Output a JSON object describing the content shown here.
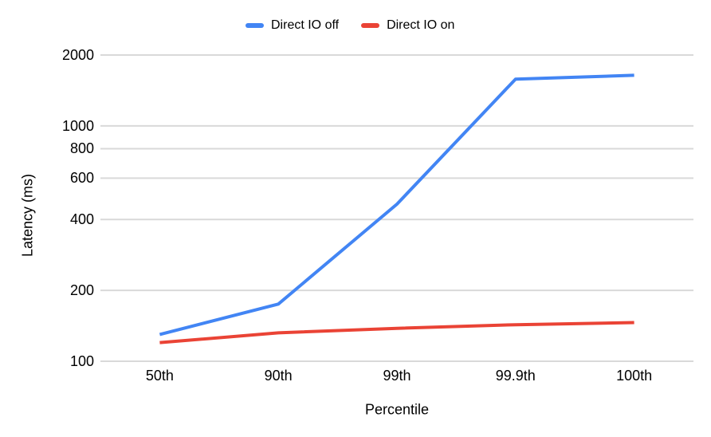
{
  "chart_data": {
    "type": "line",
    "title": "",
    "categories": [
      "50th",
      "90th",
      "99th",
      "99.9th",
      "100th"
    ],
    "series": [
      {
        "name": "Direct IO off",
        "color": "#4285F4",
        "values": [
          130,
          175,
          465,
          1580,
          1640
        ]
      },
      {
        "name": "Direct IO on",
        "color": "#EA4335",
        "values": [
          120,
          132,
          138,
          143,
          146
        ]
      }
    ],
    "xlabel": "Percentile",
    "ylabel": "Latency (ms)",
    "y_scale": "log",
    "y_ticks": [
      100,
      200,
      400,
      600,
      800,
      1000,
      2000
    ],
    "ylim": [
      100,
      2000
    ],
    "grid": "horizontal-only",
    "legend_position": "top",
    "colors": {
      "grid": "#d9d9d9",
      "text": "#000000",
      "background": "#ffffff"
    }
  }
}
